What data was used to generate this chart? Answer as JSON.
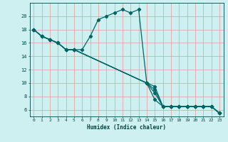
{
  "xlabel": "Humidex (Indice chaleur)",
  "bg_color": "#cff0f0",
  "grid_color": "#e89898",
  "line_color": "#006666",
  "xlim": [
    -0.5,
    23.5
  ],
  "ylim": [
    5.0,
    22.0
  ],
  "xticks": [
    0,
    1,
    2,
    3,
    4,
    5,
    6,
    7,
    8,
    9,
    10,
    11,
    12,
    13,
    14,
    15,
    16,
    17,
    18,
    19,
    20,
    21,
    22,
    23
  ],
  "yticks": [
    6,
    8,
    10,
    12,
    14,
    16,
    18,
    20
  ],
  "series": [
    {
      "x": [
        0,
        1,
        2,
        3,
        4,
        5,
        6,
        7,
        8,
        9,
        10,
        11,
        12,
        13,
        14,
        15,
        16,
        17,
        18,
        19,
        20,
        21,
        22,
        23
      ],
      "y": [
        18,
        17,
        16.5,
        16,
        15,
        15,
        15,
        17,
        19.5,
        20,
        20.5,
        21,
        20.5,
        21,
        10,
        7.5,
        6.5,
        6.5,
        6.5,
        6.5,
        6.5,
        6.5,
        6.5,
        5.5
      ]
    },
    {
      "x": [
        0,
        1,
        2,
        3,
        4,
        5,
        14,
        15,
        16,
        17,
        18,
        19,
        20,
        21,
        22,
        23
      ],
      "y": [
        18,
        17,
        16.5,
        16,
        15,
        15,
        10,
        9.5,
        6.5,
        6.5,
        6.5,
        6.5,
        6.5,
        6.5,
        6.5,
        5.5
      ]
    },
    {
      "x": [
        0,
        1,
        2,
        3,
        4,
        5,
        14,
        15,
        16,
        17,
        18,
        19,
        20,
        21,
        22,
        23
      ],
      "y": [
        18,
        17,
        16.5,
        16,
        15,
        15,
        10,
        9.0,
        6.5,
        6.5,
        6.5,
        6.5,
        6.5,
        6.5,
        6.5,
        5.5
      ]
    },
    {
      "x": [
        0,
        1,
        2,
        3,
        4,
        5,
        14,
        15,
        16,
        17,
        18,
        19,
        20,
        21,
        22,
        23
      ],
      "y": [
        18,
        17,
        16.5,
        16,
        15,
        15,
        10,
        8.5,
        6.5,
        6.5,
        6.5,
        6.5,
        6.5,
        6.5,
        6.5,
        5.5
      ]
    }
  ]
}
